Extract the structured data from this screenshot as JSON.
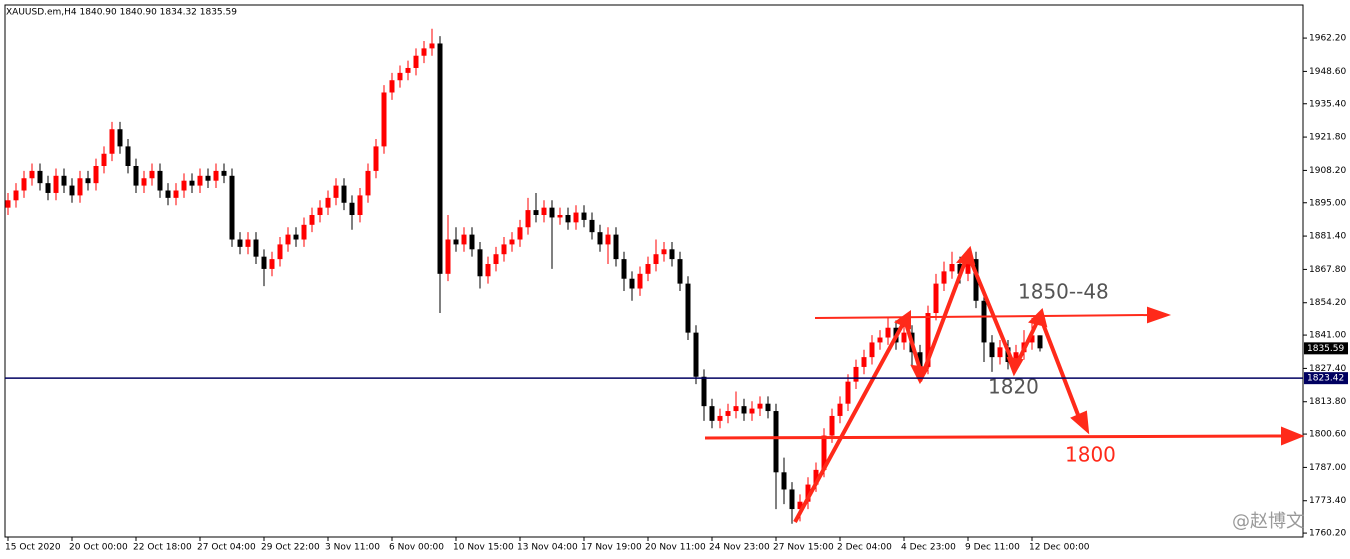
{
  "chart_data": {
    "type": "candlestick",
    "title": "XAUUSD.em,H4  1840.90 1840.90 1834.32 1835.59",
    "categories": [
      "15 Oct 2020",
      null,
      null,
      null,
      null,
      null,
      null,
      null,
      "20 Oct 00:00",
      null,
      null,
      null,
      null,
      null,
      null,
      null,
      "22 Oct 18:00",
      null,
      null,
      null,
      null,
      null,
      null,
      null,
      "27 Oct 04:00",
      null,
      null,
      null,
      null,
      null,
      null,
      null,
      "29 Oct 22:00",
      null,
      null,
      null,
      null,
      null,
      null,
      null,
      "3 Nov 11:00",
      null,
      null,
      null,
      null,
      null,
      null,
      null,
      "6 Nov 00:00",
      null,
      null,
      null,
      null,
      null,
      null,
      null,
      "10 Nov 15:00",
      null,
      null,
      null,
      null,
      null,
      null,
      null,
      "13 Nov 04:00",
      null,
      null,
      null,
      null,
      null,
      null,
      null,
      "17 Nov 19:00",
      null,
      null,
      null,
      null,
      null,
      null,
      null,
      "20 Nov 11:00",
      null,
      null,
      null,
      null,
      null,
      null,
      null,
      "24 Nov 23:00",
      null,
      null,
      null,
      null,
      null,
      null,
      null,
      "27 Nov 15:00",
      null,
      null,
      null,
      null,
      null,
      null,
      null,
      "2 Dec 04:00",
      null,
      null,
      null,
      null,
      null,
      null,
      null,
      "4 Dec 23:00",
      null,
      null,
      null,
      null,
      null,
      null,
      null,
      "9 Dec 11:00",
      null,
      null,
      null,
      null,
      null,
      null,
      null,
      "12 Dec 00:00",
      null
    ],
    "open": [
      1893,
      1896,
      1900,
      1905,
      1908,
      1903,
      1899,
      1906,
      1902,
      1898,
      1905,
      1903,
      1910,
      1915,
      1925,
      1918,
      1910,
      1902,
      1905,
      1908,
      1900,
      1897,
      1900,
      1904,
      1902,
      1906,
      1904,
      1908,
      1906,
      1880,
      1877,
      1880,
      1873,
      1868,
      1872,
      1878,
      1882,
      1880,
      1886,
      1890,
      1893,
      1897,
      1902,
      1895,
      1890,
      1898,
      1908,
      1918,
      1940,
      1945,
      1948,
      1950,
      1955,
      1958,
      1960,
      1866,
      1880,
      1878,
      1882,
      1876,
      1865,
      1870,
      1874,
      1878,
      1880,
      1885,
      1892,
      1890,
      1893,
      1889,
      1890,
      1887,
      1891,
      1888,
      1883,
      1878,
      1882,
      1872,
      1864,
      1860,
      1866,
      1870,
      1874,
      1876,
      1872,
      1862,
      1842,
      1824,
      1812,
      1806,
      1808,
      1810,
      1812,
      1809,
      1811,
      1813,
      1810,
      1785,
      1778,
      1770,
      1773,
      1780,
      1786,
      1800,
      1808,
      1813,
      1822,
      1828,
      1832,
      1838,
      1840,
      1844,
      1838,
      1842,
      1834,
      1828,
      1850,
      1862,
      1867,
      1870,
      1866,
      1872,
      1855,
      1838,
      1832,
      1836,
      1830,
      1834,
      1838,
      1840.9
    ],
    "high": [
      1899,
      1903,
      1908,
      1911,
      1911,
      1906,
      1909,
      1909,
      1905,
      1908,
      1908,
      1913,
      1918,
      1928,
      1928,
      1921,
      1913,
      1908,
      1911,
      1911,
      1903,
      1903,
      1907,
      1907,
      1909,
      1909,
      1911,
      1911,
      1909,
      1883,
      1883,
      1883,
      1876,
      1875,
      1881,
      1885,
      1885,
      1889,
      1893,
      1896,
      1900,
      1905,
      1905,
      1898,
      1901,
      1911,
      1921,
      1943,
      1948,
      1951,
      1953,
      1958,
      1961,
      1966,
      1963,
      1890,
      1885,
      1885,
      1885,
      1879,
      1873,
      1877,
      1881,
      1883,
      1888,
      1897,
      1899,
      1896,
      1896,
      1893,
      1893,
      1894,
      1894,
      1891,
      1886,
      1885,
      1885,
      1875,
      1867,
      1869,
      1873,
      1880,
      1879,
      1879,
      1875,
      1865,
      1845,
      1827,
      1815,
      1811,
      1813,
      1818,
      1815,
      1814,
      1816,
      1816,
      1813,
      1791,
      1781,
      1776,
      1783,
      1789,
      1803,
      1811,
      1816,
      1825,
      1831,
      1835,
      1841,
      1843,
      1848,
      1847,
      1848,
      1845,
      1837,
      1853,
      1866,
      1871,
      1875,
      1873,
      1876,
      1875,
      1858,
      1841,
      1839,
      1839,
      1837,
      1843,
      1848,
      1840.9
    ],
    "low": [
      1890,
      1893,
      1897,
      1902,
      1900,
      1896,
      1896,
      1899,
      1895,
      1895,
      1900,
      1900,
      1907,
      1912,
      1915,
      1907,
      1899,
      1899,
      1902,
      1897,
      1894,
      1894,
      1897,
      1899,
      1899,
      1901,
      1901,
      1903,
      1877,
      1874,
      1874,
      1870,
      1861,
      1865,
      1869,
      1875,
      1877,
      1877,
      1883,
      1887,
      1890,
      1894,
      1892,
      1884,
      1887,
      1895,
      1905,
      1915,
      1937,
      1942,
      1945,
      1947,
      1952,
      1955,
      1850,
      1863,
      1875,
      1875,
      1873,
      1860,
      1862,
      1867,
      1871,
      1875,
      1877,
      1882,
      1887,
      1887,
      1868,
      1886,
      1884,
      1884,
      1885,
      1880,
      1875,
      1870,
      1869,
      1859,
      1855,
      1857,
      1863,
      1867,
      1871,
      1869,
      1859,
      1839,
      1821,
      1806,
      1803,
      1803,
      1805,
      1807,
      1806,
      1806,
      1808,
      1807,
      1770,
      1772,
      1764,
      1765,
      1770,
      1777,
      1783,
      1797,
      1805,
      1810,
      1819,
      1825,
      1829,
      1835,
      1837,
      1835,
      1835,
      1828,
      1823,
      1825,
      1847,
      1859,
      1864,
      1862,
      1863,
      1852,
      1830,
      1826,
      1829,
      1827,
      1826,
      1831,
      1835,
      1834.32
    ],
    "close": [
      1896,
      1900,
      1905,
      1908,
      1903,
      1899,
      1906,
      1902,
      1898,
      1905,
      1903,
      1910,
      1915,
      1925,
      1918,
      1910,
      1902,
      1905,
      1908,
      1900,
      1897,
      1900,
      1904,
      1902,
      1906,
      1904,
      1908,
      1906,
      1880,
      1877,
      1880,
      1873,
      1868,
      1872,
      1878,
      1882,
      1880,
      1886,
      1890,
      1893,
      1897,
      1902,
      1895,
      1890,
      1898,
      1908,
      1918,
      1940,
      1945,
      1948,
      1950,
      1955,
      1958,
      1960,
      1866,
      1880,
      1878,
      1882,
      1876,
      1865,
      1870,
      1874,
      1878,
      1880,
      1885,
      1892,
      1890,
      1893,
      1889,
      1890,
      1887,
      1891,
      1888,
      1883,
      1878,
      1882,
      1872,
      1864,
      1860,
      1866,
      1870,
      1874,
      1876,
      1872,
      1862,
      1842,
      1824,
      1812,
      1806,
      1808,
      1810,
      1812,
      1809,
      1811,
      1813,
      1810,
      1785,
      1778,
      1770,
      1773,
      1780,
      1786,
      1800,
      1808,
      1813,
      1822,
      1828,
      1832,
      1838,
      1840,
      1844,
      1838,
      1842,
      1834,
      1828,
      1850,
      1862,
      1867,
      1870,
      1866,
      1872,
      1855,
      1838,
      1832,
      1836,
      1830,
      1834,
      1838,
      1840.9,
      1835.59
    ],
    "up_color": "#ff0000",
    "down_color": "#000000",
    "ylim": [
      1758.6,
      1975.7
    ],
    "yticks": [
      {
        "value": 1760.2,
        "label": "1760.20"
      },
      {
        "value": 1773.4,
        "label": "1773.40"
      },
      {
        "value": 1787,
        "label": "1787.00"
      },
      {
        "value": 1800.6,
        "label": "1800.60"
      },
      {
        "value": 1813.8,
        "label": "1813.80"
      },
      {
        "value": 1827.4,
        "label": "1827.40"
      },
      {
        "value": 1841,
        "label": "1841.00"
      },
      {
        "value": 1854.2,
        "label": "1854.20"
      },
      {
        "value": 1867.8,
        "label": "1867.80"
      },
      {
        "value": 1881.4,
        "label": "1881.40"
      },
      {
        "value": 1895,
        "label": "1895.00"
      },
      {
        "value": 1908.2,
        "label": "1908.20"
      },
      {
        "value": 1921.8,
        "label": "1921.80"
      },
      {
        "value": 1935.4,
        "label": "1935.40"
      },
      {
        "value": 1948.6,
        "label": "1948.60"
      },
      {
        "value": 1962.2,
        "label": "1962.20"
      }
    ],
    "hline": {
      "value": 1823.42,
      "label": "1823.42",
      "color": "#000060"
    },
    "price_label": {
      "value": 1835.59,
      "label": "1835.59"
    },
    "annotations": [
      "1850--48",
      "1820",
      "1800"
    ],
    "watermark": "@赵博文"
  }
}
